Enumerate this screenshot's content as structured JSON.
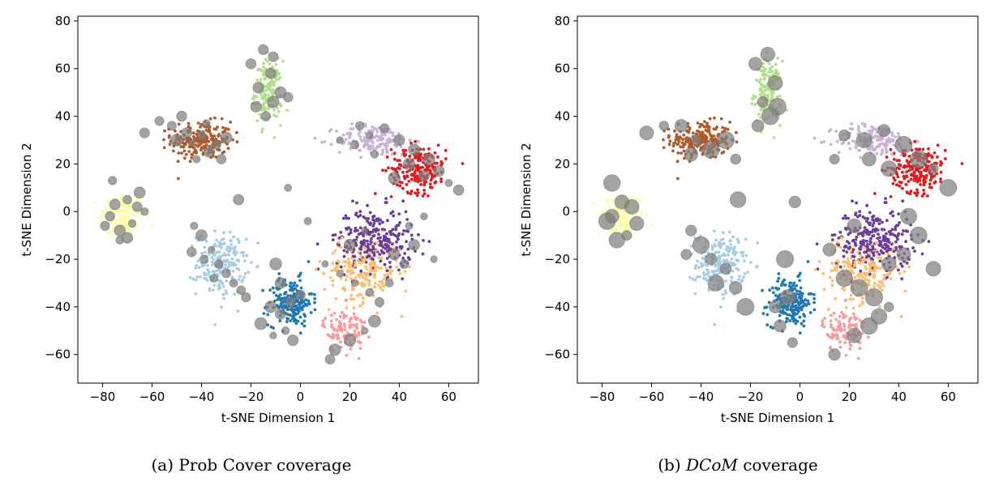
{
  "chart_data": [
    {
      "type": "scatter",
      "title": "",
      "xlabel": "t-SNE Dimension 1",
      "ylabel": "t-SNE Dimension 2",
      "xlim": [
        -90,
        72
      ],
      "ylim": [
        -72,
        82
      ],
      "xticks": [
        -80,
        -60,
        -40,
        -20,
        0,
        20,
        40,
        60
      ],
      "yticks": [
        -60,
        -40,
        -20,
        0,
        20,
        40,
        60,
        80
      ],
      "grid": false,
      "caption_prefix": "(a) Prob Cover coverage",
      "caption_method": "",
      "caption_suffix": "",
      "ball_scale": 1,
      "colors": {
        "light_blue": "#a6cee3",
        "blue": "#1f78b4",
        "green": "#b2df8a",
        "pink": "#fb9a99",
        "red": "#e31a1c",
        "orange": "#fdbf6f",
        "lavender": "#cab2d6",
        "purple": "#6a3d9a",
        "yellow": "#ffff99",
        "brown": "#b15928",
        "coverage": "#808080"
      },
      "clusters": [
        {
          "name": "yellow",
          "color": "#ffff99",
          "center": [
            -72,
            -2
          ],
          "spread": [
            8,
            9
          ],
          "n": 120
        },
        {
          "name": "brown",
          "color": "#b15928",
          "center": [
            -40,
            30
          ],
          "spread": [
            11,
            7
          ],
          "n": 230
        },
        {
          "name": "green",
          "color": "#b2df8a",
          "center": [
            -13,
            50
          ],
          "spread": [
            5,
            12
          ],
          "n": 150
        },
        {
          "name": "light_blue",
          "color": "#a6cee3",
          "center": [
            -32,
            -22
          ],
          "spread": [
            9,
            12
          ],
          "n": 200
        },
        {
          "name": "blue",
          "color": "#1f78b4",
          "center": [
            -4,
            -38
          ],
          "spread": [
            8,
            9
          ],
          "n": 200
        },
        {
          "name": "lavender",
          "color": "#cab2d6",
          "center": [
            30,
            30
          ],
          "spread": [
            14,
            6
          ],
          "n": 170
        },
        {
          "name": "red",
          "color": "#e31a1c",
          "center": [
            48,
            18
          ],
          "spread": [
            10,
            9
          ],
          "n": 210
        },
        {
          "name": "orange",
          "color": "#fdbf6f",
          "center": [
            25,
            -25
          ],
          "spread": [
            14,
            12
          ],
          "n": 210
        },
        {
          "name": "purple",
          "color": "#6a3d9a",
          "center": [
            30,
            -12
          ],
          "spread": [
            14,
            12
          ],
          "n": 280
        },
        {
          "name": "pink",
          "color": "#fb9a99",
          "center": [
            18,
            -50
          ],
          "spread": [
            8,
            8
          ],
          "n": 110
        }
      ],
      "coverage_points": [
        [
          -77,
          -2
        ],
        [
          -75,
          3
        ],
        [
          -73,
          -8
        ],
        [
          -70,
          5
        ],
        [
          -68,
          -5
        ],
        [
          -66,
          2
        ],
        [
          -73,
          -12
        ],
        [
          -79,
          -6
        ],
        [
          -70,
          -11
        ],
        [
          -63,
          0
        ],
        [
          -76,
          13
        ],
        [
          -65,
          8
        ],
        [
          -63,
          33
        ],
        [
          -57,
          38
        ],
        [
          -52,
          36
        ],
        [
          -48,
          40
        ],
        [
          -46,
          33
        ],
        [
          -44,
          29
        ],
        [
          -40,
          32
        ],
        [
          -37,
          25
        ],
        [
          -34,
          28
        ],
        [
          -30,
          31
        ],
        [
          -42,
          22
        ],
        [
          -50,
          30
        ],
        [
          -38,
          37
        ],
        [
          -32,
          22
        ],
        [
          -20,
          62
        ],
        [
          -15,
          68
        ],
        [
          -12,
          58
        ],
        [
          -17,
          52
        ],
        [
          -11,
          46
        ],
        [
          -14,
          40
        ],
        [
          -8,
          50
        ],
        [
          -5,
          48
        ],
        [
          -18,
          44
        ],
        [
          -11,
          65
        ],
        [
          -43,
          -6
        ],
        [
          -40,
          -10
        ],
        [
          -36,
          -16
        ],
        [
          -33,
          -22
        ],
        [
          -30,
          -26
        ],
        [
          -27,
          -30
        ],
        [
          -24,
          -33
        ],
        [
          -35,
          -28
        ],
        [
          -39,
          -20
        ],
        [
          -22,
          -36
        ],
        [
          -44,
          -17
        ],
        [
          -12,
          -40
        ],
        [
          -8,
          -43
        ],
        [
          -4,
          -38
        ],
        [
          0,
          -35
        ],
        [
          -6,
          -50
        ],
        [
          -11,
          -52
        ],
        [
          -3,
          -54
        ],
        [
          -16,
          -47
        ],
        [
          16,
          30
        ],
        [
          22,
          28
        ],
        [
          28,
          32
        ],
        [
          34,
          35
        ],
        [
          40,
          30
        ],
        [
          46,
          26
        ],
        [
          52,
          22
        ],
        [
          56,
          17
        ],
        [
          60,
          12
        ],
        [
          64,
          9
        ],
        [
          50,
          15
        ],
        [
          44,
          20
        ],
        [
          38,
          14
        ],
        [
          30,
          24
        ],
        [
          24,
          36
        ],
        [
          10,
          -22
        ],
        [
          16,
          -26
        ],
        [
          22,
          -30
        ],
        [
          28,
          -34
        ],
        [
          32,
          -38
        ],
        [
          38,
          -18
        ],
        [
          42,
          -22
        ],
        [
          46,
          -14
        ],
        [
          54,
          -20
        ],
        [
          36,
          -30
        ],
        [
          26,
          -8
        ],
        [
          20,
          -14
        ],
        [
          44,
          -6
        ],
        [
          50,
          -2
        ],
        [
          14,
          -58
        ],
        [
          20,
          -54
        ],
        [
          26,
          -50
        ],
        [
          30,
          -46
        ],
        [
          12,
          -62
        ],
        [
          -8,
          -30
        ],
        [
          -10,
          -22
        ],
        [
          -5,
          10
        ],
        [
          3,
          -4
        ],
        [
          -25,
          5
        ]
      ]
    },
    {
      "type": "scatter",
      "title": "",
      "xlabel": "t-SNE Dimension 1",
      "ylabel": "t-SNE Dimension 2",
      "xlim": [
        -90,
        72
      ],
      "ylim": [
        -72,
        82
      ],
      "xticks": [
        -80,
        -60,
        -40,
        -20,
        0,
        20,
        40,
        60
      ],
      "yticks": [
        -60,
        -40,
        -20,
        0,
        20,
        40,
        60,
        80
      ],
      "grid": false,
      "caption_prefix": "(b) ",
      "caption_method": "DCoM",
      "caption_suffix": " coverage",
      "ball_scale": 1.45,
      "colors": {
        "light_blue": "#a6cee3",
        "blue": "#1f78b4",
        "green": "#b2df8a",
        "pink": "#fb9a99",
        "red": "#e31a1c",
        "orange": "#fdbf6f",
        "lavender": "#cab2d6",
        "purple": "#6a3d9a",
        "yellow": "#ffff99",
        "brown": "#b15928",
        "coverage": "#808080"
      },
      "clusters": [
        {
          "name": "yellow",
          "color": "#ffff99",
          "center": [
            -72,
            -2
          ],
          "spread": [
            8,
            9
          ],
          "n": 120
        },
        {
          "name": "brown",
          "color": "#b15928",
          "center": [
            -40,
            30
          ],
          "spread": [
            11,
            7
          ],
          "n": 230
        },
        {
          "name": "green",
          "color": "#b2df8a",
          "center": [
            -13,
            50
          ],
          "spread": [
            5,
            12
          ],
          "n": 150
        },
        {
          "name": "light_blue",
          "color": "#a6cee3",
          "center": [
            -32,
            -22
          ],
          "spread": [
            9,
            12
          ],
          "n": 200
        },
        {
          "name": "blue",
          "color": "#1f78b4",
          "center": [
            -4,
            -38
          ],
          "spread": [
            8,
            9
          ],
          "n": 200
        },
        {
          "name": "lavender",
          "color": "#cab2d6",
          "center": [
            30,
            30
          ],
          "spread": [
            14,
            6
          ],
          "n": 170
        },
        {
          "name": "red",
          "color": "#e31a1c",
          "center": [
            48,
            18
          ],
          "spread": [
            10,
            9
          ],
          "n": 210
        },
        {
          "name": "orange",
          "color": "#fdbf6f",
          "center": [
            25,
            -25
          ],
          "spread": [
            14,
            12
          ],
          "n": 210
        },
        {
          "name": "purple",
          "color": "#6a3d9a",
          "center": [
            30,
            -12
          ],
          "spread": [
            14,
            12
          ],
          "n": 280
        },
        {
          "name": "pink",
          "color": "#fb9a99",
          "center": [
            18,
            -50
          ],
          "spread": [
            8,
            8
          ],
          "n": 110
        }
      ],
      "coverage_points": [
        [
          -76,
          -2
        ],
        [
          -72,
          4
        ],
        [
          -70,
          -10
        ],
        [
          -66,
          -5
        ],
        [
          -78,
          -4
        ],
        [
          -74,
          -12
        ],
        [
          -68,
          2
        ],
        [
          -76,
          12
        ],
        [
          -62,
          33
        ],
        [
          -55,
          36
        ],
        [
          -48,
          36
        ],
        [
          -42,
          30
        ],
        [
          -36,
          26
        ],
        [
          -30,
          30
        ],
        [
          -44,
          24
        ],
        [
          -26,
          22
        ],
        [
          -18,
          62
        ],
        [
          -13,
          66
        ],
        [
          -10,
          54
        ],
        [
          -15,
          46
        ],
        [
          -9,
          44
        ],
        [
          -17,
          36
        ],
        [
          -12,
          40
        ],
        [
          -44,
          -8
        ],
        [
          -40,
          -14
        ],
        [
          -36,
          -20
        ],
        [
          -30,
          -24
        ],
        [
          -26,
          -32
        ],
        [
          -34,
          -30
        ],
        [
          -22,
          -40
        ],
        [
          -46,
          -18
        ],
        [
          -10,
          -40
        ],
        [
          -5,
          -36
        ],
        [
          -8,
          -48
        ],
        [
          -3,
          -55
        ],
        [
          18,
          32
        ],
        [
          26,
          30
        ],
        [
          34,
          34
        ],
        [
          42,
          28
        ],
        [
          48,
          22
        ],
        [
          54,
          18
        ],
        [
          60,
          10
        ],
        [
          36,
          18
        ],
        [
          28,
          22
        ],
        [
          14,
          22
        ],
        [
          12,
          -16
        ],
        [
          18,
          -28
        ],
        [
          24,
          -32
        ],
        [
          30,
          -36
        ],
        [
          36,
          -22
        ],
        [
          42,
          -18
        ],
        [
          48,
          -10
        ],
        [
          54,
          -24
        ],
        [
          36,
          -40
        ],
        [
          22,
          -6
        ],
        [
          44,
          -2
        ],
        [
          14,
          -60
        ],
        [
          22,
          -52
        ],
        [
          28,
          -48
        ],
        [
          32,
          -44
        ],
        [
          -6,
          -20
        ],
        [
          -2,
          4
        ],
        [
          -25,
          5
        ]
      ]
    }
  ]
}
